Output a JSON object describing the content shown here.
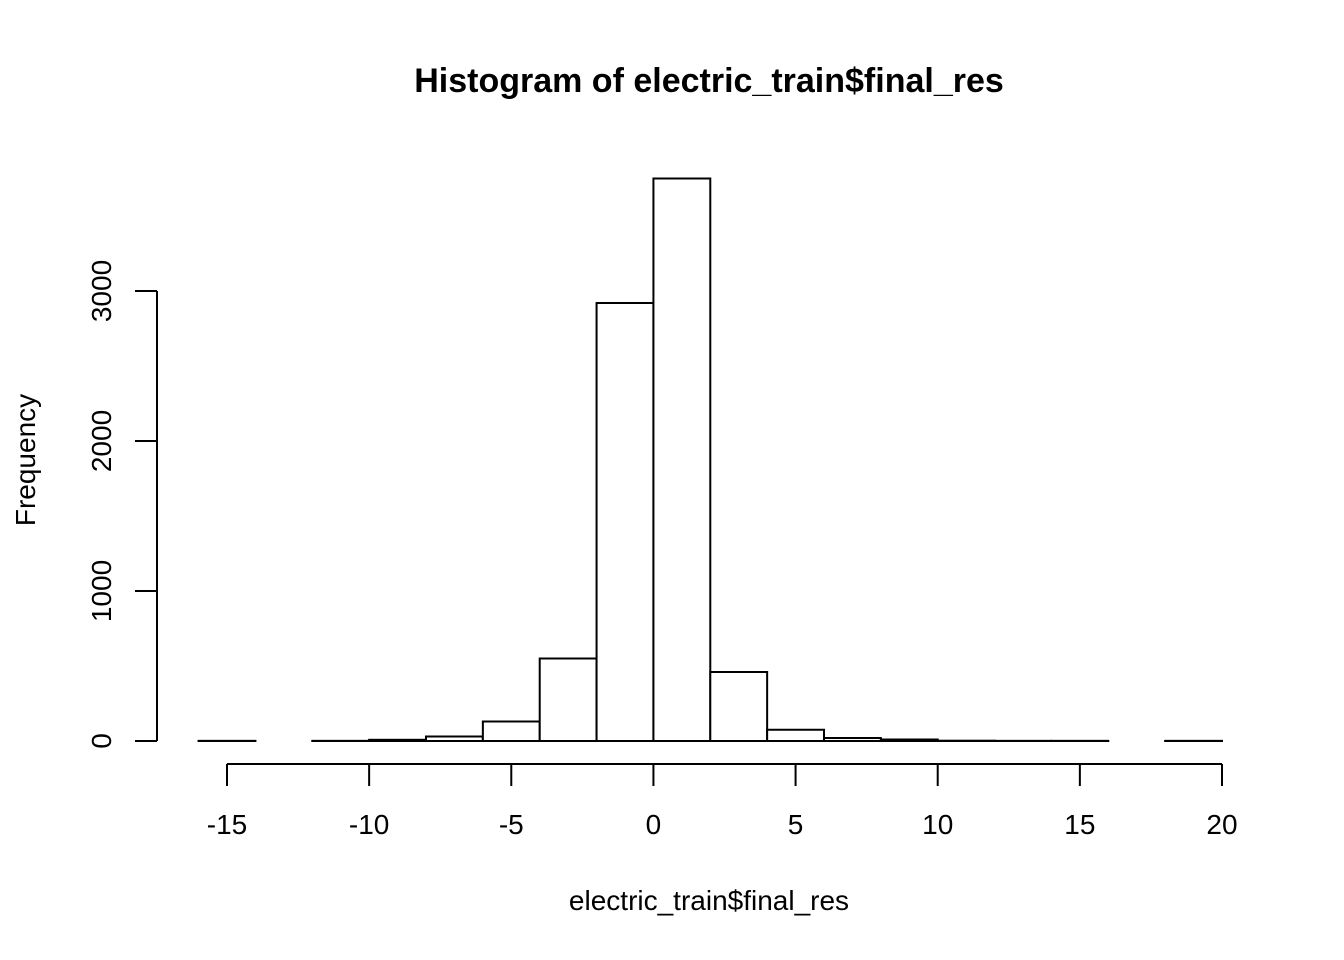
{
  "chart_data": {
    "type": "bar",
    "title": "Histogram of electric_train$final_res",
    "xlabel": "electric_train$final_res",
    "ylabel": "Frequency",
    "xlim": [
      -16,
      20
    ],
    "ylim": [
      0,
      3800
    ],
    "bin_width": 2,
    "bins": [
      {
        "x0": -16,
        "x1": -14,
        "count": 1
      },
      {
        "x0": -14,
        "x1": -12,
        "count": 0
      },
      {
        "x0": -12,
        "x1": -10,
        "count": 1
      },
      {
        "x0": -10,
        "x1": -8,
        "count": 8
      },
      {
        "x0": -8,
        "x1": -6,
        "count": 30
      },
      {
        "x0": -6,
        "x1": -4,
        "count": 130
      },
      {
        "x0": -4,
        "x1": -2,
        "count": 550
      },
      {
        "x0": -2,
        "x1": 0,
        "count": 2920
      },
      {
        "x0": 0,
        "x1": 2,
        "count": 3750
      },
      {
        "x0": 2,
        "x1": 4,
        "count": 460
      },
      {
        "x0": 4,
        "x1": 6,
        "count": 75
      },
      {
        "x0": 6,
        "x1": 8,
        "count": 20
      },
      {
        "x0": 8,
        "x1": 10,
        "count": 10
      },
      {
        "x0": 10,
        "x1": 12,
        "count": 2
      },
      {
        "x0": 12,
        "x1": 14,
        "count": 1
      },
      {
        "x0": 14,
        "x1": 16,
        "count": 1
      },
      {
        "x0": 16,
        "x1": 18,
        "count": 0
      },
      {
        "x0": 18,
        "x1": 20,
        "count": 1
      }
    ],
    "x_ticks": [
      {
        "value": -15,
        "label": "-15"
      },
      {
        "value": -10,
        "label": "-10"
      },
      {
        "value": -5,
        "label": "-5"
      },
      {
        "value": 0,
        "label": "0"
      },
      {
        "value": 5,
        "label": "5"
      },
      {
        "value": 10,
        "label": "10"
      },
      {
        "value": 15,
        "label": "15"
      },
      {
        "value": 20,
        "label": "20"
      }
    ],
    "y_ticks": [
      {
        "value": 0,
        "label": "0"
      },
      {
        "value": 1000,
        "label": "1000"
      },
      {
        "value": 2000,
        "label": "2000"
      },
      {
        "value": 3000,
        "label": "3000"
      }
    ],
    "grid": false,
    "legend": "none",
    "colors": {
      "bar_fill": "#ffffff",
      "bar_stroke": "#000000",
      "axis": "#000000",
      "background": "#ffffff"
    }
  }
}
